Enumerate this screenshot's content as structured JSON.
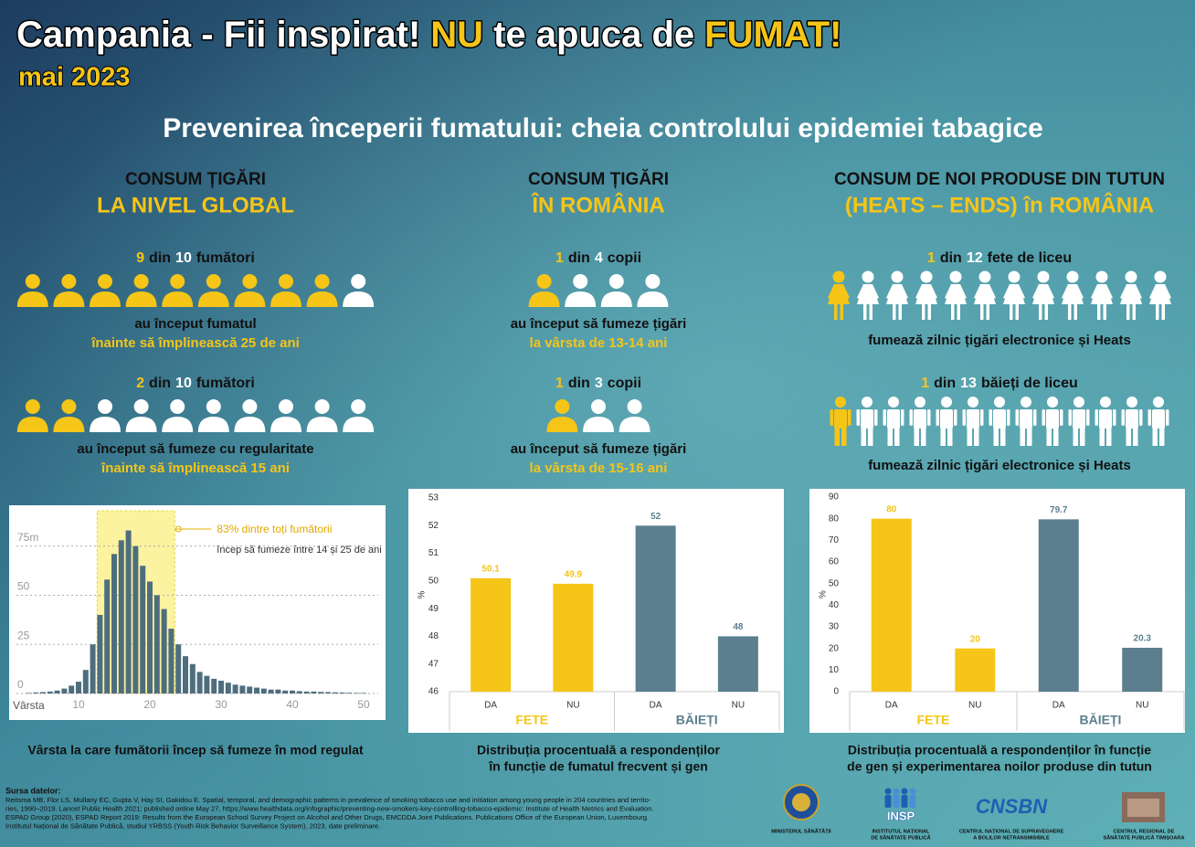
{
  "header": {
    "title": [
      "Campania - Fii inspirat!",
      "NU",
      "te apuca de",
      "FUMAT!"
    ],
    "date": "mai 2023",
    "subtitle": "Prevenirea începerii fumatului: cheia controlului epidemiei tabagice"
  },
  "columns": [
    {
      "heading": "CONSUM ȚIGĂRI",
      "subheading": "LA NIVEL GLOBAL",
      "stats": [
        {
          "n": 9,
          "sep": "din",
          "total": 10,
          "unit": "fumători",
          "icon": "bust",
          "lines": [
            "au început fumatul",
            "înainte să împlinească 25 de ani"
          ]
        },
        {
          "n": 2,
          "sep": "din",
          "total": 10,
          "unit": "fumători",
          "icon": "bust",
          "lines": [
            "au început să fumeze cu regularitate",
            "înainte să împlinească 15 ani"
          ]
        }
      ]
    },
    {
      "heading": "CONSUM ȚIGĂRI",
      "subheading": "ÎN ROMÂNIA",
      "stats": [
        {
          "n": 1,
          "sep": "din",
          "total": 4,
          "unit": "copii",
          "icon": "bust",
          "lines": [
            "au început să fumeze țigări",
            "la vârsta de 13-14 ani"
          ]
        },
        {
          "n": 1,
          "sep": "din",
          "total": 3,
          "unit": "copii",
          "icon": "bust",
          "lines": [
            "au început să fumeze țigări",
            "la vârsta de 15-16 ani"
          ]
        }
      ]
    },
    {
      "heading": "CONSUM DE NOI PRODUSE DIN TUTUN",
      "subheading": "(HEATS – ENDS) în ROMÂNIA",
      "stats": [
        {
          "n": 1,
          "sep": "din",
          "total": 12,
          "unit": "fete de liceu",
          "icon": "girl",
          "lines": [
            "fumează zilnic țigări electronice și Heats"
          ]
        },
        {
          "n": 1,
          "sep": "din",
          "total": 13,
          "unit": "băieți de liceu",
          "icon": "boy",
          "lines": [
            "fumează zilnic țigări electronice și Heats"
          ]
        }
      ]
    }
  ],
  "chart_data": [
    {
      "type": "histogram",
      "caption": [
        "Vârsta la care fumătorii încep să fumeze în mod regulat"
      ],
      "x_label": "Vârsta",
      "x": [
        3,
        4,
        5,
        6,
        7,
        8,
        9,
        10,
        11,
        12,
        13,
        14,
        15,
        16,
        17,
        18,
        19,
        20,
        21,
        22,
        23,
        24,
        25,
        26,
        27,
        28,
        29,
        30,
        31,
        32,
        33,
        34,
        35,
        36,
        37,
        38,
        39,
        40,
        41,
        42,
        43,
        44,
        45,
        46,
        47,
        48,
        49,
        50
      ],
      "values": [
        0.3,
        0.5,
        0.7,
        1,
        1.5,
        2.5,
        4,
        6,
        12,
        25,
        40,
        58,
        71,
        78,
        83,
        75,
        65,
        57,
        50,
        43,
        33,
        25,
        19,
        15,
        11,
        9,
        7.5,
        6.5,
        5.5,
        4.5,
        4,
        3.5,
        3,
        2.5,
        2,
        2,
        1.5,
        1.5,
        1.2,
        1,
        1,
        0.8,
        0.7,
        0.6,
        0.5,
        0.4,
        0.3,
        0.3
      ],
      "color": "#4f6e7d",
      "xlim": [
        1,
        52
      ],
      "xticks": [
        10,
        20,
        30,
        40,
        50
      ],
      "ylim": [
        0,
        90
      ],
      "yticks": [
        0,
        25,
        50,
        {
          "value": 75,
          "label": "75m"
        }
      ],
      "grid": true,
      "highlight_x": [
        12.6,
        23.5
      ],
      "highlight_color": "#fbf3a0",
      "annotation": [
        "83% dintre toți fumătorii",
        "încep să fumeze între 14 și 25 de ani"
      ]
    },
    {
      "type": "grouped_bar",
      "caption": [
        "Distribuția procentuală a respondenților",
        "în funcție de fumatul frecvent și gen"
      ],
      "y_label": "%",
      "series": [
        {
          "name": "FETE",
          "color": "#f5c518",
          "categories": [
            "DA",
            "NU"
          ],
          "values": [
            50.1,
            49.9
          ]
        },
        {
          "name": "BĂIEȚI",
          "color": "#5b7f8e",
          "categories": [
            "DA",
            "NU"
          ],
          "values": [
            52,
            48
          ]
        }
      ],
      "ylim": [
        46,
        53
      ],
      "yticks": [
        46,
        47,
        48,
        49,
        50,
        51,
        52,
        53
      ],
      "grid": false
    },
    {
      "type": "grouped_bar",
      "caption": [
        "Distribuția procentuală a respondenților în funcție",
        "de gen și experimentarea noilor produse din tutun"
      ],
      "y_label": "%",
      "series": [
        {
          "name": "FETE",
          "color": "#f5c518",
          "categories": [
            "DA",
            "NU"
          ],
          "values": [
            80,
            20
          ]
        },
        {
          "name": "BĂIEȚI",
          "color": "#5b7f8e",
          "categories": [
            "DA",
            "NU"
          ],
          "values": [
            79.7,
            20.3
          ]
        }
      ],
      "ylim": [
        0,
        90
      ],
      "yticks": [
        0,
        10,
        20,
        30,
        40,
        50,
        60,
        70,
        80,
        90
      ],
      "grid": false
    }
  ],
  "sources": {
    "title": "Sursa datelor:",
    "lines": [
      "Reitsma MB, Flor LS, Mullany EC, Gupta V, Hay SI, Gakidou E. Spatial, temporal, and demographic patterns in prevalence of smoking tobacco use and initiation among young people in 204 countries and territo-",
      "ries, 1990–2019. Lancet Public Health 2021; published online May 27, https://www.healthdata.org/infographic/preventing-new-smokers-key-controlling-tobacco-epidemic: Institute of Health Metrics and Evaluation.",
      "ESPAD Group (2020), ESPAD Report 2019: Results from the European School Survey Project on Alcohol and Other Drugs, EMCDDA Joint Publications. Publications Office of the European Union, Luxembourg.",
      "Institutul Național de Sănătate Publică, studiul YRBSS (Youth Risk Behavior Surveillance System), 2023, date preliminare."
    ]
  },
  "logos": [
    {
      "label": [
        "MINISTERUL SĂNĂTĂȚII"
      ]
    },
    {
      "mark": "INSP",
      "label": [
        "INSTITUTUL NAȚIONAL",
        "DE SĂNĂTATE PUBLICĂ"
      ]
    },
    {
      "mark": "CNSBN",
      "label": [
        "CENTRUL NAȚIONAL DE SUPRAVEGHERE",
        "A BOLILOR NETRANSMISIBILE"
      ]
    },
    {
      "label": [
        "CENTRUL REGIONAL DE",
        "SĂNĂTATE PUBLICĂ TIMIȘOARA"
      ]
    }
  ]
}
